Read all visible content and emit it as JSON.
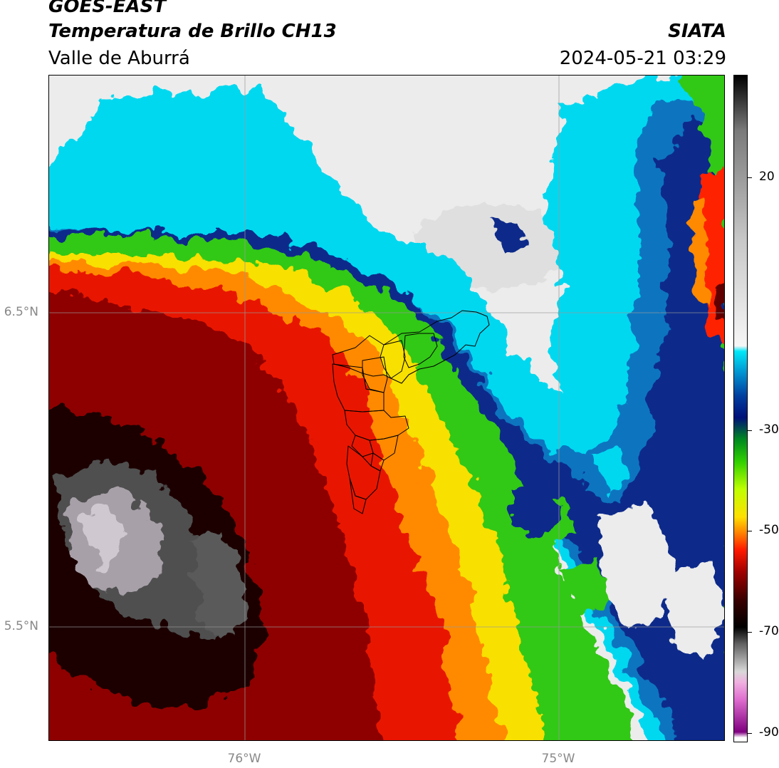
{
  "header": {
    "satellite": "GOES-EAST",
    "product": "Temperatura de Brillo CH13",
    "region": "Valle de Aburrá",
    "agency": "SIATA",
    "datetime": "2024-05-21 03:29"
  },
  "map": {
    "lat_ticks": [
      "6.5°N",
      "5.5°N"
    ],
    "lon_ticks": [
      "76°W",
      "75°W"
    ]
  },
  "colorbar": {
    "ticks": [
      "20",
      "-30",
      "-50",
      "-70",
      "-90"
    ],
    "stops": [
      {
        "value": -90,
        "color": "#ffffff"
      },
      {
        "value": -89,
        "color": "#800080"
      },
      {
        "value": -83,
        "color": "#e070d0"
      },
      {
        "value": -80,
        "color": "#f0b0e0"
      },
      {
        "value": -78,
        "color": "#d8d8d8"
      },
      {
        "value": -73,
        "color": "#606060"
      },
      {
        "value": -70,
        "color": "#000000"
      },
      {
        "value": -65,
        "color": "#3a0000"
      },
      {
        "value": -60,
        "color": "#a00000"
      },
      {
        "value": -56,
        "color": "#ff1a00"
      },
      {
        "value": -53,
        "color": "#ff8000"
      },
      {
        "value": -50,
        "color": "#ffe000"
      },
      {
        "value": -45,
        "color": "#c0ff00"
      },
      {
        "value": -40,
        "color": "#30d000"
      },
      {
        "value": -36,
        "color": "#008a20"
      },
      {
        "value": -32,
        "color": "#00107a"
      },
      {
        "value": -28,
        "color": "#0040a0"
      },
      {
        "value": -24,
        "color": "#0090d0"
      },
      {
        "value": -20,
        "color": "#00e8f8"
      },
      {
        "value": -19,
        "color": "#f6f6f6"
      },
      {
        "value": 0,
        "color": "#c8c8c8"
      },
      {
        "value": 20,
        "color": "#7a7a7a"
      },
      {
        "value": 30,
        "color": "#000000"
      }
    ]
  }
}
